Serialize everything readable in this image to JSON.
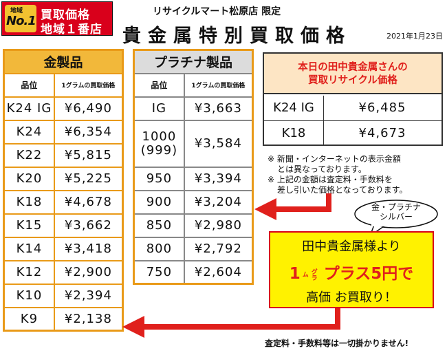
{
  "badge": {
    "chiiki_small": "地域",
    "no1": "No.1",
    "line1": "買取価格",
    "line2": "地域１番店"
  },
  "header": {
    "store": "リサイクルマート松原店 限定",
    "title": "貴金属特別買取価格",
    "date": "2021年1月23日"
  },
  "gold": {
    "title": "金製品",
    "col1": "品位",
    "col2": "1グラムの買取価格",
    "rows": [
      {
        "grade": "K24 IG",
        "price": "¥6,490"
      },
      {
        "grade": "K24",
        "price": "¥6,354"
      },
      {
        "grade": "K22",
        "price": "¥5,815"
      },
      {
        "grade": "K20",
        "price": "¥5,225"
      },
      {
        "grade": "K18",
        "price": "¥4,678"
      },
      {
        "grade": "K15",
        "price": "¥3,662"
      },
      {
        "grade": "K14",
        "price": "¥3,418"
      },
      {
        "grade": "K12",
        "price": "¥2,900"
      },
      {
        "grade": "K10",
        "price": "¥2,394"
      },
      {
        "grade": "K9",
        "price": "¥2,138"
      }
    ]
  },
  "platinum": {
    "title": "プラチナ製品",
    "col1": "品位",
    "col2": "1グラムの買取価格",
    "rows": [
      {
        "grade": "IG",
        "grade2": "",
        "price": "¥3,663"
      },
      {
        "grade": "1000",
        "grade2": "(999)",
        "price": "¥3,584"
      },
      {
        "grade": "950",
        "grade2": "",
        "price": "¥3,394"
      },
      {
        "grade": "900",
        "grade2": "",
        "price": "¥3,204"
      },
      {
        "grade": "850",
        "grade2": "",
        "price": "¥2,980"
      },
      {
        "grade": "800",
        "grade2": "",
        "price": "¥2,792"
      },
      {
        "grade": "750",
        "grade2": "",
        "price": "¥2,604"
      }
    ]
  },
  "tanaka": {
    "heading1": "本日の田中貴金属さんの",
    "heading2": "買取リサイクル価格",
    "rows": [
      {
        "grade": "K24 IG",
        "price": "¥6,485"
      },
      {
        "grade": "K18",
        "price": "¥4,673"
      }
    ]
  },
  "notes": {
    "n1a": "※ 新聞・インターネットの表示金額",
    "n1b": "とは異なっております。",
    "n2a": "※ 上記の金額は査定料・手数料を",
    "n2b": "差し引いた価格となっております。"
  },
  "bubble": {
    "line1": "金・プラチナ",
    "line2": "シルバー"
  },
  "promo": {
    "line1": "田中貴金属様より",
    "unit_num": "1",
    "unit_kana": "グラム",
    "line2": "プラス5円で",
    "line3": "高価 お買取り！"
  },
  "footer": "査定料・手数料等は一切掛かりません!",
  "colors": {
    "red": "#e0201c",
    "gold_header": "#f2b83a",
    "orange_border": "#e99a18",
    "promo_yellow": "#fff200"
  }
}
